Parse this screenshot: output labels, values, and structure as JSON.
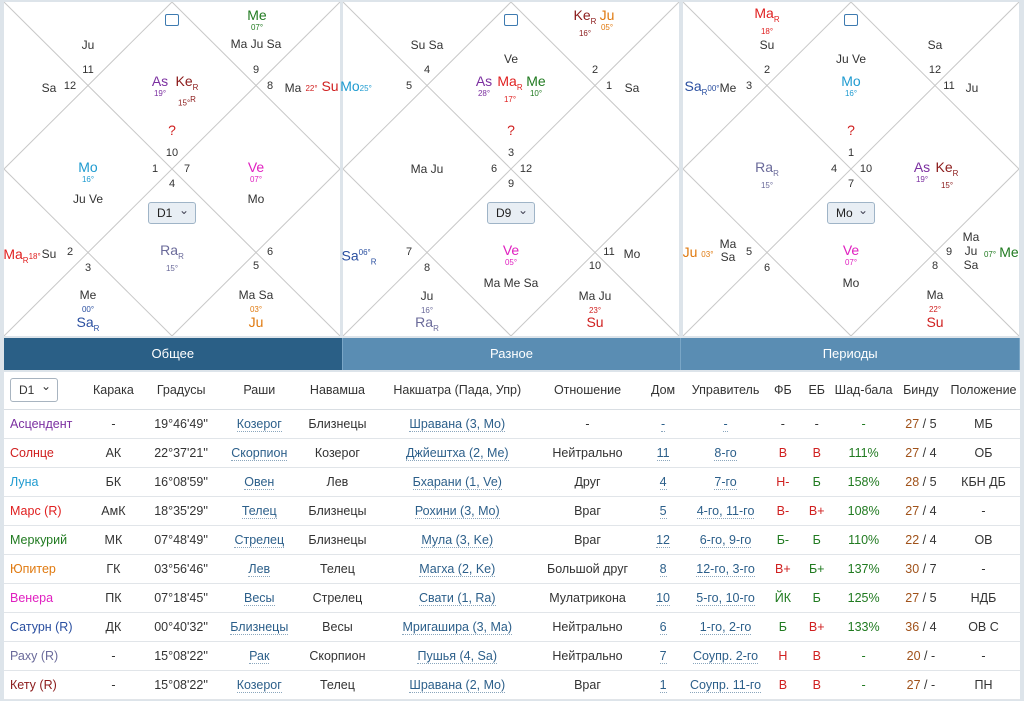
{
  "colors": {
    "as": "#7b2fa0",
    "ke": "#8b1a1a",
    "mo": "#1f9bd0",
    "ve": "#e020c0",
    "ma": "#e02020",
    "sa": "#2a4fa0",
    "me": "#207a20",
    "su": "#d02020",
    "ju": "#e07a10",
    "ra": "#6a6a9a",
    "q": "#d02020"
  },
  "chart1": {
    "select": "D1",
    "n1": "10",
    "n2": "11",
    "n3": "12",
    "n4": "1",
    "n5": "2",
    "n6": "3",
    "n7": "4",
    "n8": "5",
    "n9": "6",
    "n10": "7",
    "n11": "8",
    "n12": "9",
    "top_me": "Me",
    "top_me_deg": "07°",
    "top_r1": "Ma Ju Sa",
    "tl_ju": "Ju",
    "left_sa": "Sa",
    "c_as": "As",
    "c_as_deg": "19°",
    "c_ke": "Ke",
    "c_ke_sub": "R",
    "c_ke_deg": "15°",
    "c_ke_sup": "R",
    "right_ma": "Ma",
    "right_su_deg": "22°",
    "right_su": "Su",
    "q": "?",
    "l_mo": "Mo",
    "l_mo_deg": "16°",
    "l_juve": "Ju Ve",
    "r_ve": "Ve",
    "r_ve_deg": "07°",
    "r_mo": "Mo",
    "bl_ma": "Ma",
    "bl_ma_sub": "R",
    "bl_ma_deg": "18°",
    "bl_su": "Su",
    "c_ra": "Ra",
    "c_ra_sub": "R",
    "c_ra_deg": "15°",
    "b_me": "Me",
    "b_me_deg": "00°",
    "b_sa": "Sa",
    "b_sa_sub": "R",
    "br_masa": "Ma Sa",
    "br_deg": "03°",
    "br_ju": "Ju"
  },
  "chart2": {
    "select": "D9",
    "n1": "3",
    "n2": "4",
    "n3": "5",
    "n4": "6",
    "n5": "7",
    "n6": "8",
    "n7": "9",
    "n8": "10",
    "n9": "11",
    "n10": "12",
    "n11": "1",
    "n12": "2",
    "tl_susa": "Su Sa",
    "top_ke": "Ke",
    "top_ke_sub": "R",
    "top_ke_deg": "16°",
    "top_ju": "Ju",
    "top_ju_deg": "05°",
    "c_ve": "Ve",
    "l_mo": "Mo",
    "l_mo_deg": "25°",
    "c_as": "As",
    "c_as_deg": "28°",
    "c_ma": "Ma",
    "c_ma_sub": "R",
    "c_ma_deg": "17°",
    "c_me": "Me",
    "c_me_deg": "10°",
    "r_sa": "Sa",
    "q": "?",
    "l_maju": "Ma Ju",
    "bl_sa": "Sa",
    "bl_sa_sup": "06°",
    "bl_sa_sub": "R",
    "c_ve2": "Ve",
    "c_ve2_deg": "05°",
    "r_mo": "Mo",
    "b_mamesa": "Ma Me Sa",
    "b_ju": "Ju",
    "b_ju_deg": "16°",
    "b_ra": "Ra",
    "b_ra_sub": "R",
    "br_maju": "Ma Ju",
    "br_deg": "23°",
    "br_su": "Su"
  },
  "chart3": {
    "select": "Mo",
    "n1": "1",
    "n2": "2",
    "n3": "3",
    "n4": "4",
    "n5": "5",
    "n6": "6",
    "n7": "7",
    "n8": "8",
    "n9": "9",
    "n10": "10",
    "n11": "11",
    "n12": "12",
    "tl_ma": "Ma",
    "tl_ma_sub": "R",
    "tl_ma_deg": "18°",
    "tl_su": "Su",
    "c_juve": "Ju Ve",
    "tr_sa": "Sa",
    "l_sa": "Sa",
    "l_sa_sub": "R",
    "l_sa_deg": "00°",
    "l_me": "Me",
    "c_mo": "Mo",
    "c_mo_deg": "16°",
    "r_ju": "Ju",
    "q": "?",
    "l_ra": "Ra",
    "l_ra_sub": "R",
    "l_ra_deg": "15°",
    "r_as": "As",
    "r_as_deg": "19°",
    "r_ke": "Ke",
    "r_ke_sub": "R",
    "r_ke_deg": "15°",
    "bl_ju": "Ju",
    "bl_ju_deg": "03°",
    "bl_masa": "Ma Sa",
    "c_ve": "Ve",
    "c_ve_deg": "07°",
    "c_mo2": "Mo",
    "br_majusa": "Ma Ju Sa",
    "br_deg": "07°",
    "br_me": "Me",
    "b_ma": "Ma",
    "b_ma_deg": "22°",
    "b_su": "Su"
  },
  "tabs": [
    "Общее",
    "Разное",
    "Периоды"
  ],
  "table": {
    "select": "D1",
    "headers": [
      "Карака",
      "Градусы",
      "Раши",
      "Навамша",
      "Накшатра (Пада, Упр)",
      "Отношение",
      "Дом",
      "Управитель",
      "ФБ",
      "ЕБ",
      "Шад-бала",
      "Бинду",
      "Положение"
    ],
    "rows": [
      {
        "name": "Асцендент",
        "color": "#7b2fa0",
        "karaka": "-",
        "deg": "19°46'49''",
        "rashi": "Козерог",
        "nav": "Близнецы",
        "nak": "Шравана (3, Mo)",
        "rel": "-",
        "dom": "-",
        "upr": "-",
        "fb": "-",
        "eb": "-",
        "shad": "-",
        "b1": "27",
        "b2": "5",
        "pol": "МБ"
      },
      {
        "name": "Солнце",
        "color": "#d02020",
        "karaka": "АК",
        "deg": "22°37'21''",
        "rashi": "Скорпион",
        "nav": "Козерог",
        "nak": "Джйештха (2, Me)",
        "rel": "Нейтрально",
        "dom": "11",
        "upr": "8-го",
        "fb": "В",
        "eb": "В",
        "shad": "111%",
        "b1": "27",
        "b2": "4",
        "pol": "ОБ"
      },
      {
        "name": "Луна",
        "color": "#1f9bd0",
        "karaka": "БК",
        "deg": "16°08'59''",
        "rashi": "Овен",
        "nav": "Лев",
        "nak": "Бхарани (1, Ve)",
        "rel": "Друг",
        "dom": "4",
        "upr": "7-го",
        "fb": "Н-",
        "eb": "Б",
        "shad": "158%",
        "b1": "28",
        "b2": "5",
        "pol": "КБН ДБ"
      },
      {
        "name": "Марс (R)",
        "color": "#e02020",
        "karaka": "АмК",
        "deg": "18°35'29''",
        "rashi": "Телец",
        "nav": "Близнецы",
        "nak": "Рохини (3, Mo)",
        "rel": "Враг",
        "dom": "5",
        "upr": "4-го, 11-го",
        "fb": "В-",
        "eb": "В+",
        "shad": "108%",
        "b1": "27",
        "b2": "4",
        "pol": "-"
      },
      {
        "name": "Меркурий",
        "color": "#207a20",
        "karaka": "МК",
        "deg": "07°48'49''",
        "rashi": "Стрелец",
        "nav": "Близнецы",
        "nak": "Мула (3, Ke)",
        "rel": "Враг",
        "dom": "12",
        "upr": "6-го, 9-го",
        "fb": "Б-",
        "eb": "Б",
        "shad": "110%",
        "b1": "22",
        "b2": "4",
        "pol": "ОВ"
      },
      {
        "name": "Юпитер",
        "color": "#e07a10",
        "karaka": "ГК",
        "deg": "03°56'46''",
        "rashi": "Лев",
        "nav": "Телец",
        "nak": "Магха (2, Ke)",
        "rel": "Большой друг",
        "dom": "8",
        "upr": "12-го, 3-го",
        "fb": "В+",
        "eb": "Б+",
        "shad": "137%",
        "b1": "30",
        "b2": "7",
        "pol": "-"
      },
      {
        "name": "Венера",
        "color": "#e020c0",
        "karaka": "ПК",
        "deg": "07°18'45''",
        "rashi": "Весы",
        "nav": "Стрелец",
        "nak": "Свати (1, Ra)",
        "rel": "Мулатрикона",
        "dom": "10",
        "upr": "5-го, 10-го",
        "fb": "ЙК",
        "eb": "Б",
        "shad": "125%",
        "b1": "27",
        "b2": "5",
        "pol": "НДБ"
      },
      {
        "name": "Сатурн (R)",
        "color": "#2a4fa0",
        "karaka": "ДК",
        "deg": "00°40'32''",
        "rashi": "Близнецы",
        "nav": "Весы",
        "nak": "Мригашира (3, Ma)",
        "rel": "Нейтрально",
        "dom": "6",
        "upr": "1-го, 2-го",
        "fb": "Б",
        "eb": "В+",
        "shad": "133%",
        "b1": "36",
        "b2": "4",
        "pol": "ОВ С"
      },
      {
        "name": "Раху (R)",
        "color": "#6a6a9a",
        "karaka": "-",
        "deg": "15°08'22''",
        "rashi": "Рак",
        "nav": "Скорпион",
        "nak": "Пушья (4, Sa)",
        "rel": "Нейтрально",
        "dom": "7",
        "upr": "Соупр. 2-го",
        "fb": "Н",
        "eb": "В",
        "shad": "-",
        "b1": "20",
        "b2": "-",
        "pol": "-"
      },
      {
        "name": "Кету (R)",
        "color": "#8b1a1a",
        "karaka": "-",
        "deg": "15°08'22''",
        "rashi": "Козерог",
        "nav": "Телец",
        "nak": "Шравана (2, Mo)",
        "rel": "Враг",
        "dom": "1",
        "upr": "Соупр. 11-го",
        "fb": "В",
        "eb": "В",
        "shad": "-",
        "b1": "27",
        "b2": "-",
        "pol": "ПН"
      }
    ]
  }
}
